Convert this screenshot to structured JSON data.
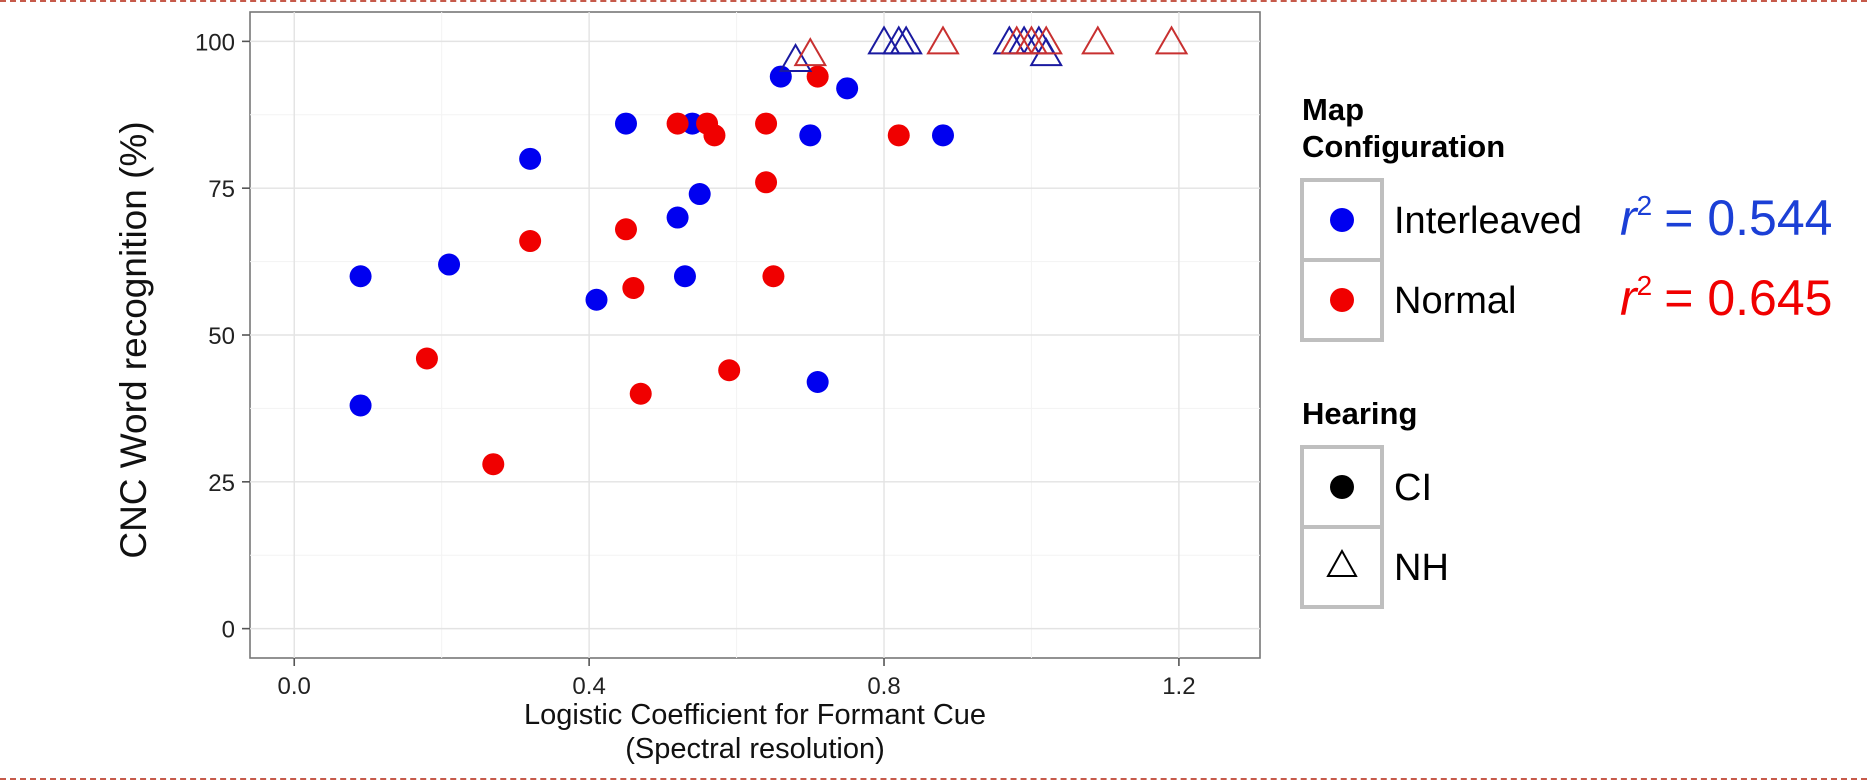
{
  "chart_data": {
    "type": "scatter",
    "xlabel_line1": "Logistic Coefficient for Formant Cue",
    "xlabel_line2": "(Spectral resolution)",
    "ylabel": "CNC Word recognition (%)",
    "xlim": [
      -0.06,
      1.31
    ],
    "ylim": [
      -5,
      105
    ],
    "xticks": [
      0.0,
      0.4,
      0.8,
      1.2
    ],
    "xtick_labels": [
      "0.0",
      "0.4",
      "0.8",
      "1.2"
    ],
    "yticks": [
      0,
      25,
      50,
      75,
      100
    ],
    "ytick_labels": [
      "0",
      "25",
      "50",
      "75",
      "100"
    ],
    "grid": true,
    "legend_placement": "right",
    "colors": {
      "Interleaved": "#0000f0",
      "Normal": "#f00000",
      "Interleaved_outline": "#1a1aa0",
      "Normal_outline": "#c83030"
    },
    "series": [
      {
        "name": "Interleaved",
        "hearing": "CI",
        "points": [
          [
            0.09,
            60
          ],
          [
            0.09,
            38
          ],
          [
            0.21,
            62
          ],
          [
            0.32,
            80
          ],
          [
            0.41,
            56
          ],
          [
            0.45,
            86
          ],
          [
            0.52,
            70
          ],
          [
            0.53,
            60
          ],
          [
            0.54,
            86
          ],
          [
            0.55,
            74
          ],
          [
            0.66,
            94
          ],
          [
            0.7,
            84
          ],
          [
            0.71,
            42
          ],
          [
            0.75,
            92
          ],
          [
            0.88,
            84
          ]
        ]
      },
      {
        "name": "Normal",
        "hearing": "CI",
        "points": [
          [
            0.18,
            46
          ],
          [
            0.27,
            28
          ],
          [
            0.32,
            66
          ],
          [
            0.45,
            68
          ],
          [
            0.46,
            58
          ],
          [
            0.47,
            40
          ],
          [
            0.52,
            86
          ],
          [
            0.56,
            86
          ],
          [
            0.57,
            84
          ],
          [
            0.59,
            44
          ],
          [
            0.64,
            86
          ],
          [
            0.64,
            76
          ],
          [
            0.65,
            60
          ],
          [
            0.71,
            94
          ],
          [
            0.82,
            84
          ]
        ]
      },
      {
        "name": "Interleaved",
        "hearing": "NH",
        "points": [
          [
            0.68,
            97
          ],
          [
            0.8,
            100
          ],
          [
            0.82,
            100
          ],
          [
            0.83,
            100
          ],
          [
            0.97,
            100
          ],
          [
            0.99,
            100
          ],
          [
            1.01,
            100
          ],
          [
            1.02,
            98
          ]
        ]
      },
      {
        "name": "Normal",
        "hearing": "NH",
        "points": [
          [
            0.7,
            98
          ],
          [
            0.88,
            100
          ],
          [
            0.98,
            100
          ],
          [
            1.0,
            100
          ],
          [
            1.02,
            100
          ],
          [
            1.09,
            100
          ],
          [
            1.19,
            100
          ]
        ]
      }
    ]
  },
  "legend": {
    "map_title_line1": "Map",
    "map_title_line2": "Configuration",
    "interleaved_label": "Interleaved",
    "normal_label": "Normal",
    "hearing_title": "Hearing",
    "ci_label": "CI",
    "nh_label": "NH",
    "r2_symbol": "r",
    "r2_exponent": "2",
    "interleaved_r2": "= 0.544",
    "normal_r2": "= 0.645"
  }
}
